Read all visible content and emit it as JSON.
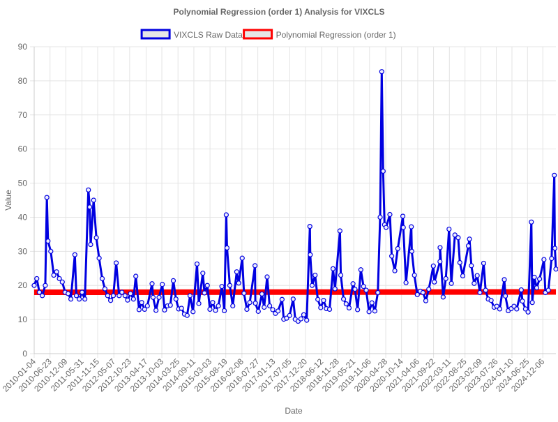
{
  "chart_data": {
    "type": "line",
    "title": "Polynomial Regression (order 1) Analysis for VIXCLS",
    "x_label": "Date",
    "y_label": "Value",
    "x": [
      "2010-01-04",
      "2010-02-01",
      "2010-03-01",
      "2010-04-01",
      "2010-05-03",
      "2010-05-20",
      "2010-06-01",
      "2010-07-01",
      "2010-08-02",
      "2010-09-01",
      "2010-10-01",
      "2010-11-01",
      "2010-12-01",
      "2011-01-03",
      "2011-02-01",
      "2011-03-16",
      "2011-04-01",
      "2011-05-02",
      "2011-06-01",
      "2011-07-01",
      "2011-08-08",
      "2011-08-22",
      "2011-09-01",
      "2011-10-03",
      "2011-11-01",
      "2011-12-01",
      "2012-01-03",
      "2012-02-01",
      "2012-03-01",
      "2012-04-02",
      "2012-05-01",
      "2012-06-01",
      "2012-07-02",
      "2012-08-01",
      "2012-09-04",
      "2012-10-01",
      "2012-11-01",
      "2012-12-03",
      "2012-12-28",
      "2013-02-01",
      "2013-03-01",
      "2013-04-01",
      "2013-05-01",
      "2013-06-20",
      "2013-07-01",
      "2013-08-01",
      "2013-09-03",
      "2013-10-08",
      "2013-11-01",
      "2013-12-02",
      "2014-01-02",
      "2014-02-03",
      "2014-03-03",
      "2014-04-01",
      "2014-05-01",
      "2014-06-02",
      "2014-07-01",
      "2014-08-01",
      "2014-09-02",
      "2014-10-15",
      "2014-11-03",
      "2014-12-16",
      "2015-01-02",
      "2015-02-02",
      "2015-03-02",
      "2015-04-01",
      "2015-05-01",
      "2015-06-01",
      "2015-07-08",
      "2015-08-03",
      "2015-08-24",
      "2015-09-01",
      "2015-10-01",
      "2015-11-02",
      "2015-12-14",
      "2016-01-04",
      "2016-02-11",
      "2016-03-01",
      "2016-04-01",
      "2016-05-02",
      "2016-06-27",
      "2016-07-01",
      "2016-08-01",
      "2016-09-09",
      "2016-10-03",
      "2016-11-04",
      "2016-12-01",
      "2017-01-03",
      "2017-02-01",
      "2017-03-01",
      "2017-04-13",
      "2017-05-01",
      "2017-06-01",
      "2017-07-03",
      "2017-08-10",
      "2017-09-01",
      "2017-10-02",
      "2017-11-01",
      "2017-12-01",
      "2018-01-02",
      "2018-02-05",
      "2018-02-09",
      "2018-03-01",
      "2018-04-02",
      "2018-05-01",
      "2018-06-01",
      "2018-07-02",
      "2018-08-01",
      "2018-09-04",
      "2018-10-11",
      "2018-11-01",
      "2018-12-24",
      "2019-01-02",
      "2019-02-01",
      "2019-03-01",
      "2019-04-01",
      "2019-05-13",
      "2019-06-03",
      "2019-07-01",
      "2019-08-05",
      "2019-09-03",
      "2019-10-01",
      "2019-11-01",
      "2019-12-02",
      "2020-01-02",
      "2020-02-03",
      "2020-02-28",
      "2020-03-16",
      "2020-03-31",
      "2020-04-15",
      "2020-05-01",
      "2020-06-11",
      "2020-07-01",
      "2020-08-03",
      "2020-09-04",
      "2020-10-28",
      "2020-11-02",
      "2020-12-01",
      "2021-01-27",
      "2021-02-01",
      "2021-03-01",
      "2021-04-01",
      "2021-05-03",
      "2021-06-01",
      "2021-07-01",
      "2021-08-02",
      "2021-09-20",
      "2021-10-01",
      "2021-11-30",
      "2021-12-01",
      "2022-01-03",
      "2022-02-01",
      "2022-03-07",
      "2022-04-01",
      "2022-05-09",
      "2022-06-13",
      "2022-07-01",
      "2022-08-01",
      "2022-09-30",
      "2022-10-12",
      "2022-11-01",
      "2022-12-01",
      "2023-01-03",
      "2023-02-01",
      "2023-03-13",
      "2023-04-03",
      "2023-05-01",
      "2023-06-01",
      "2023-07-03",
      "2023-08-01",
      "2023-09-01",
      "2023-10-20",
      "2023-11-01",
      "2023-12-01",
      "2024-01-02",
      "2024-02-01",
      "2024-03-01",
      "2024-04-19",
      "2024-05-01",
      "2024-06-03",
      "2024-07-01",
      "2024-08-05",
      "2024-08-15",
      "2024-09-06",
      "2024-10-01",
      "2024-11-01",
      "2024-12-18",
      "2025-01-02",
      "2025-02-03",
      "2025-03-10",
      "2025-04-08",
      "2025-04-14",
      "2025-04-25"
    ],
    "series": [
      {
        "name": "VIXCLS Raw Data",
        "color": "#0000e0",
        "values": [
          20,
          22,
          18,
          17,
          20,
          45.8,
          33,
          30,
          23,
          24,
          22,
          21,
          18,
          17.6,
          16,
          29,
          17,
          16,
          18,
          16,
          48,
          43,
          32,
          45,
          34,
          28,
          22,
          19,
          17,
          15.6,
          17,
          26.6,
          17,
          18,
          17,
          15.7,
          17.6,
          16,
          22.7,
          12.9,
          15,
          13,
          14,
          20.5,
          16.5,
          12.7,
          16.5,
          20.3,
          12.8,
          14,
          14.2,
          21.4,
          16,
          13.1,
          13.3,
          11.6,
          11.2,
          17,
          12.3,
          26.3,
          14.7,
          23.6,
          17.8,
          20,
          13,
          15,
          12.7,
          14,
          19.7,
          12.6,
          40.7,
          31,
          20,
          14,
          24,
          20.7,
          28,
          17.7,
          13,
          15,
          25.8,
          14.8,
          12.4,
          17.5,
          13.6,
          22.5,
          14,
          12.9,
          11.8,
          12.5,
          15.9,
          10.1,
          10.4,
          11.2,
          16,
          10.1,
          9.5,
          10.2,
          11.4,
          9.8,
          37.3,
          29,
          20,
          23,
          15.9,
          13.5,
          15.6,
          13.2,
          13,
          24.9,
          19,
          36,
          23,
          16,
          14.6,
          13.4,
          20.5,
          18.9,
          12.9,
          24.6,
          19.7,
          18.6,
          12.3,
          14.9,
          12.5,
          17.9,
          40,
          82.7,
          53.5,
          37.8,
          37,
          40.8,
          28.6,
          24.3,
          30.8,
          40.3,
          37,
          20.8,
          37.2,
          30,
          23,
          17.3,
          18.3,
          17.9,
          15.5,
          18.9,
          25.7,
          21,
          27,
          31.1,
          16.6,
          22,
          36.5,
          20.6,
          34.8,
          34,
          26.7,
          22.8,
          31.6,
          33.6,
          25.8,
          20.6,
          22.9,
          17.9,
          26.5,
          18.6,
          16,
          15.6,
          13.6,
          13.9,
          13.1,
          21.7,
          16.9,
          12.6,
          13.2,
          13.9,
          13.1,
          18.7,
          15.4,
          13.1,
          12.2,
          38.6,
          15,
          22.4,
          19.3,
          21.9,
          27.6,
          17.9,
          18.6,
          27.9,
          52.3,
          30.9,
          24.8
        ]
      },
      {
        "name": "Polynomial Regression (order 1)",
        "color": "#ff0000",
        "x": [
          "2010-01-04",
          "2025-04-25"
        ],
        "values": [
          18.0,
          18.1
        ]
      }
    ],
    "xlim": [
      "2010-01-04",
      "2025-04-25"
    ],
    "xticks": [
      "2010-01-04",
      "2010-06-23",
      "2010-12-09",
      "2011-05-31",
      "2011-11-15",
      "2012-05-07",
      "2012-10-23",
      "2013-04-17",
      "2013-10-03",
      "2014-03-25",
      "2014-09-11",
      "2015-03-03",
      "2015-08-19",
      "2016-02-08",
      "2016-07-27",
      "2017-01-13",
      "2017-07-05",
      "2017-12-20",
      "2018-06-12",
      "2018-11-28",
      "2019-05-21",
      "2019-11-06",
      "2020-04-28",
      "2020-10-14",
      "2021-04-06",
      "2021-09-22",
      "2022-03-11",
      "2022-08-25",
      "2023-02-09",
      "2023-07-26",
      "2024-01-10",
      "2024-06-25",
      "2024-12-06"
    ],
    "ylim": [
      0,
      90
    ],
    "yticks": [
      0,
      10,
      20,
      30,
      40,
      50,
      60,
      70,
      80,
      90
    ],
    "grid": true,
    "legend": "top"
  }
}
